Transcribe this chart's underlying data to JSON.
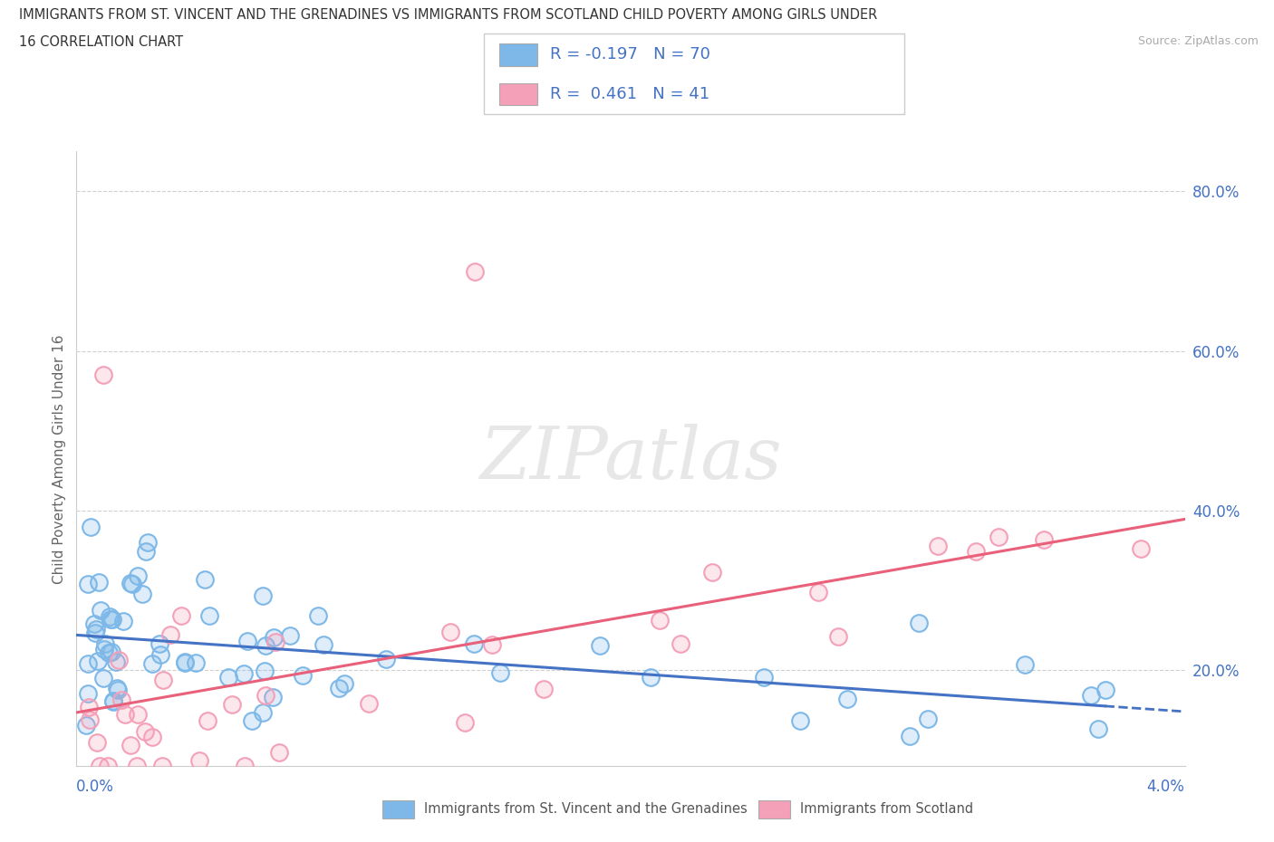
{
  "title_line1": "IMMIGRANTS FROM ST. VINCENT AND THE GRENADINES VS IMMIGRANTS FROM SCOTLAND CHILD POVERTY AMONG GIRLS UNDER",
  "title_line2": "16 CORRELATION CHART",
  "source": "Source: ZipAtlas.com",
  "ylabel": "Child Poverty Among Girls Under 16",
  "x_min": 0.0,
  "x_max": 4.0,
  "y_min": 8.0,
  "y_max": 85.0,
  "yticks": [
    20.0,
    40.0,
    60.0,
    80.0
  ],
  "ytick_labels": [
    "20.0%",
    "40.0%",
    "60.0%",
    "80.0%"
  ],
  "blue_color": "#7db8e8",
  "pink_color": "#f4a0b8",
  "blue_line_color": "#4472c4",
  "pink_line_color": "#e8607a",
  "blue_dot_edge": "#7db8e8",
  "pink_dot_edge": "#f4a0b8",
  "watermark": "ZIPatlas",
  "legend_label1": "R = -0.197   N = 70",
  "legend_label2": "R =  0.461   N = 41",
  "bottom_label1": "Immigrants from St. Vincent and the Grenadines",
  "bottom_label2": "Immigrants from Scotland",
  "grid_color": "#d0d0d0",
  "spine_color": "#cccccc"
}
